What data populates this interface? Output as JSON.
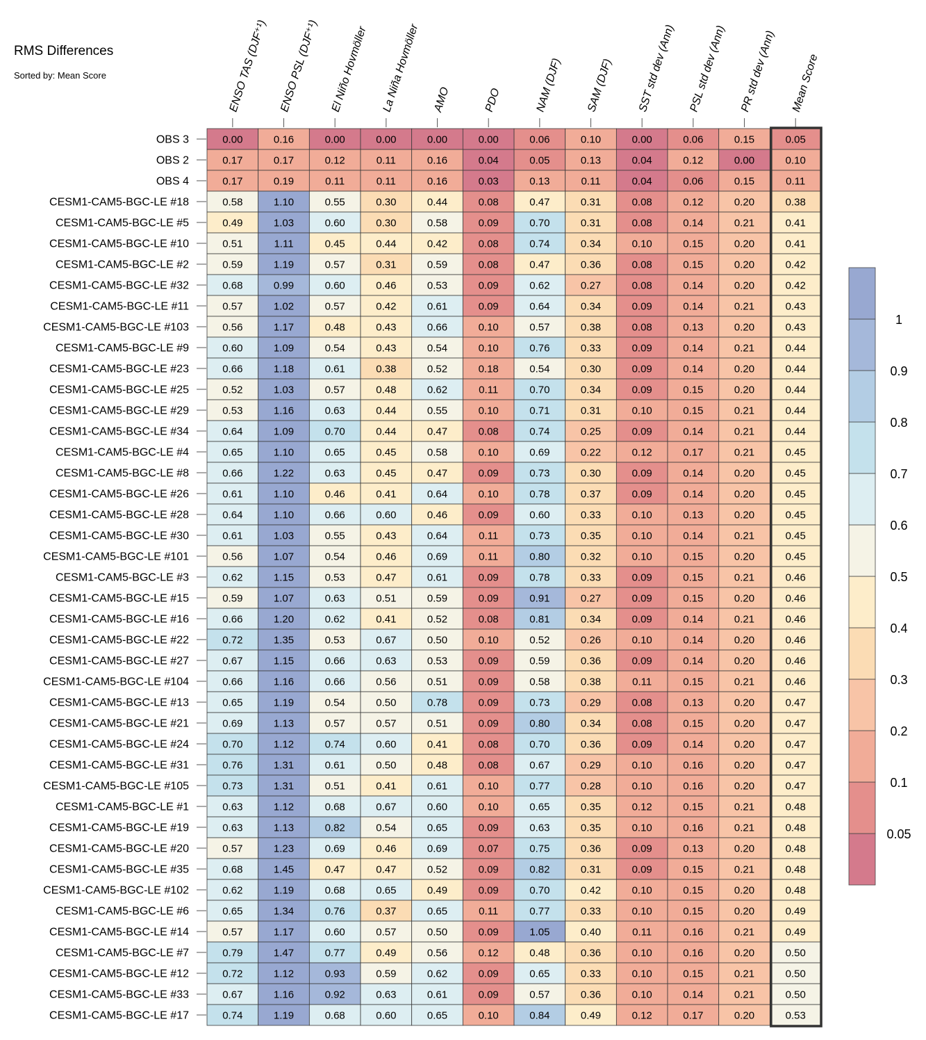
{
  "chart_data": {
    "type": "heatmap",
    "title": "RMS Differences",
    "subtitle": "Sorted by: Mean Score",
    "columns": [
      "ENSO TAS (DJF⁺¹)",
      "ENSO PSL (DJF⁺¹)",
      "El Niño Hovmöller",
      "La Niña Hovmöller",
      "AMO",
      "PDO",
      "NAM (DJF)",
      "SAM (DJF)",
      "SST std dev (Ann)",
      "PSL std dev (Ann)",
      "PR std dev (Ann)",
      "Mean Score"
    ],
    "highlighted_column": "Mean Score",
    "rows": [
      "OBS 3",
      "OBS 2",
      "OBS 4",
      "CESM1-CAM5-BGC-LE #18",
      "CESM1-CAM5-BGC-LE #5",
      "CESM1-CAM5-BGC-LE #10",
      "CESM1-CAM5-BGC-LE #2",
      "CESM1-CAM5-BGC-LE #32",
      "CESM1-CAM5-BGC-LE #11",
      "CESM1-CAM5-BGC-LE #103",
      "CESM1-CAM5-BGC-LE #9",
      "CESM1-CAM5-BGC-LE #23",
      "CESM1-CAM5-BGC-LE #25",
      "CESM1-CAM5-BGC-LE #29",
      "CESM1-CAM5-BGC-LE #34",
      "CESM1-CAM5-BGC-LE #4",
      "CESM1-CAM5-BGC-LE #8",
      "CESM1-CAM5-BGC-LE #26",
      "CESM1-CAM5-BGC-LE #28",
      "CESM1-CAM5-BGC-LE #30",
      "CESM1-CAM5-BGC-LE #101",
      "CESM1-CAM5-BGC-LE #3",
      "CESM1-CAM5-BGC-LE #15",
      "CESM1-CAM5-BGC-LE #16",
      "CESM1-CAM5-BGC-LE #22",
      "CESM1-CAM5-BGC-LE #27",
      "CESM1-CAM5-BGC-LE #104",
      "CESM1-CAM5-BGC-LE #13",
      "CESM1-CAM5-BGC-LE #21",
      "CESM1-CAM5-BGC-LE #24",
      "CESM1-CAM5-BGC-LE #31",
      "CESM1-CAM5-BGC-LE #105",
      "CESM1-CAM5-BGC-LE #1",
      "CESM1-CAM5-BGC-LE #19",
      "CESM1-CAM5-BGC-LE #20",
      "CESM1-CAM5-BGC-LE #35",
      "CESM1-CAM5-BGC-LE #102",
      "CESM1-CAM5-BGC-LE #6",
      "CESM1-CAM5-BGC-LE #14",
      "CESM1-CAM5-BGC-LE #7",
      "CESM1-CAM5-BGC-LE #12",
      "CESM1-CAM5-BGC-LE #33",
      "CESM1-CAM5-BGC-LE #17"
    ],
    "values": [
      [
        "0.00",
        "0.16",
        "0.00",
        "0.00",
        "0.00",
        "0.00",
        "0.06",
        "0.10",
        "0.00",
        "0.06",
        "0.15",
        "0.05"
      ],
      [
        "0.17",
        "0.17",
        "0.12",
        "0.11",
        "0.16",
        "0.04",
        "0.05",
        "0.13",
        "0.04",
        "0.12",
        "0.00",
        "0.10"
      ],
      [
        "0.17",
        "0.19",
        "0.11",
        "0.11",
        "0.16",
        "0.03",
        "0.13",
        "0.11",
        "0.04",
        "0.06",
        "0.15",
        "0.11"
      ],
      [
        "0.58",
        "1.10",
        "0.55",
        "0.30",
        "0.44",
        "0.08",
        "0.47",
        "0.31",
        "0.08",
        "0.12",
        "0.20",
        "0.38"
      ],
      [
        "0.49",
        "1.03",
        "0.60",
        "0.30",
        "0.58",
        "0.09",
        "0.70",
        "0.31",
        "0.08",
        "0.14",
        "0.21",
        "0.41"
      ],
      [
        "0.51",
        "1.11",
        "0.45",
        "0.44",
        "0.42",
        "0.08",
        "0.74",
        "0.34",
        "0.10",
        "0.15",
        "0.20",
        "0.41"
      ],
      [
        "0.59",
        "1.19",
        "0.57",
        "0.31",
        "0.59",
        "0.08",
        "0.47",
        "0.36",
        "0.08",
        "0.15",
        "0.20",
        "0.42"
      ],
      [
        "0.68",
        "0.99",
        "0.60",
        "0.46",
        "0.53",
        "0.09",
        "0.62",
        "0.27",
        "0.08",
        "0.14",
        "0.20",
        "0.42"
      ],
      [
        "0.57",
        "1.02",
        "0.57",
        "0.42",
        "0.61",
        "0.09",
        "0.64",
        "0.34",
        "0.09",
        "0.14",
        "0.21",
        "0.43"
      ],
      [
        "0.56",
        "1.17",
        "0.48",
        "0.43",
        "0.66",
        "0.10",
        "0.57",
        "0.38",
        "0.08",
        "0.13",
        "0.20",
        "0.43"
      ],
      [
        "0.60",
        "1.09",
        "0.54",
        "0.43",
        "0.54",
        "0.10",
        "0.76",
        "0.33",
        "0.09",
        "0.14",
        "0.21",
        "0.44"
      ],
      [
        "0.66",
        "1.18",
        "0.61",
        "0.38",
        "0.52",
        "0.18",
        "0.54",
        "0.30",
        "0.09",
        "0.14",
        "0.20",
        "0.44"
      ],
      [
        "0.52",
        "1.03",
        "0.57",
        "0.48",
        "0.62",
        "0.11",
        "0.70",
        "0.34",
        "0.09",
        "0.15",
        "0.20",
        "0.44"
      ],
      [
        "0.53",
        "1.16",
        "0.63",
        "0.44",
        "0.55",
        "0.10",
        "0.71",
        "0.31",
        "0.10",
        "0.15",
        "0.21",
        "0.44"
      ],
      [
        "0.64",
        "1.09",
        "0.70",
        "0.44",
        "0.47",
        "0.08",
        "0.74",
        "0.25",
        "0.09",
        "0.14",
        "0.21",
        "0.44"
      ],
      [
        "0.65",
        "1.10",
        "0.65",
        "0.45",
        "0.58",
        "0.10",
        "0.69",
        "0.22",
        "0.12",
        "0.17",
        "0.21",
        "0.45"
      ],
      [
        "0.66",
        "1.22",
        "0.63",
        "0.45",
        "0.47",
        "0.09",
        "0.73",
        "0.30",
        "0.09",
        "0.14",
        "0.20",
        "0.45"
      ],
      [
        "0.61",
        "1.10",
        "0.46",
        "0.41",
        "0.64",
        "0.10",
        "0.78",
        "0.37",
        "0.09",
        "0.14",
        "0.20",
        "0.45"
      ],
      [
        "0.64",
        "1.10",
        "0.66",
        "0.60",
        "0.46",
        "0.09",
        "0.60",
        "0.33",
        "0.10",
        "0.13",
        "0.20",
        "0.45"
      ],
      [
        "0.61",
        "1.03",
        "0.55",
        "0.43",
        "0.64",
        "0.11",
        "0.73",
        "0.35",
        "0.10",
        "0.14",
        "0.21",
        "0.45"
      ],
      [
        "0.56",
        "1.07",
        "0.54",
        "0.46",
        "0.69",
        "0.11",
        "0.80",
        "0.32",
        "0.10",
        "0.15",
        "0.20",
        "0.45"
      ],
      [
        "0.62",
        "1.15",
        "0.53",
        "0.47",
        "0.61",
        "0.09",
        "0.78",
        "0.33",
        "0.09",
        "0.15",
        "0.21",
        "0.46"
      ],
      [
        "0.59",
        "1.07",
        "0.63",
        "0.51",
        "0.59",
        "0.09",
        "0.91",
        "0.27",
        "0.09",
        "0.15",
        "0.20",
        "0.46"
      ],
      [
        "0.66",
        "1.20",
        "0.62",
        "0.41",
        "0.52",
        "0.08",
        "0.81",
        "0.34",
        "0.09",
        "0.14",
        "0.21",
        "0.46"
      ],
      [
        "0.72",
        "1.35",
        "0.53",
        "0.67",
        "0.50",
        "0.10",
        "0.52",
        "0.26",
        "0.10",
        "0.14",
        "0.20",
        "0.46"
      ],
      [
        "0.67",
        "1.15",
        "0.66",
        "0.63",
        "0.53",
        "0.09",
        "0.59",
        "0.36",
        "0.09",
        "0.14",
        "0.20",
        "0.46"
      ],
      [
        "0.66",
        "1.16",
        "0.66",
        "0.56",
        "0.51",
        "0.09",
        "0.58",
        "0.38",
        "0.11",
        "0.15",
        "0.21",
        "0.46"
      ],
      [
        "0.65",
        "1.19",
        "0.54",
        "0.50",
        "0.78",
        "0.09",
        "0.73",
        "0.29",
        "0.08",
        "0.13",
        "0.20",
        "0.47"
      ],
      [
        "0.69",
        "1.13",
        "0.57",
        "0.57",
        "0.51",
        "0.09",
        "0.80",
        "0.34",
        "0.08",
        "0.15",
        "0.20",
        "0.47"
      ],
      [
        "0.70",
        "1.12",
        "0.74",
        "0.60",
        "0.41",
        "0.08",
        "0.70",
        "0.36",
        "0.09",
        "0.14",
        "0.20",
        "0.47"
      ],
      [
        "0.76",
        "1.31",
        "0.61",
        "0.50",
        "0.48",
        "0.08",
        "0.67",
        "0.29",
        "0.10",
        "0.16",
        "0.20",
        "0.47"
      ],
      [
        "0.73",
        "1.31",
        "0.51",
        "0.41",
        "0.61",
        "0.10",
        "0.77",
        "0.28",
        "0.10",
        "0.16",
        "0.20",
        "0.47"
      ],
      [
        "0.63",
        "1.12",
        "0.68",
        "0.67",
        "0.60",
        "0.10",
        "0.65",
        "0.35",
        "0.12",
        "0.15",
        "0.21",
        "0.48"
      ],
      [
        "0.63",
        "1.13",
        "0.82",
        "0.54",
        "0.65",
        "0.09",
        "0.63",
        "0.35",
        "0.10",
        "0.16",
        "0.21",
        "0.48"
      ],
      [
        "0.57",
        "1.23",
        "0.69",
        "0.46",
        "0.69",
        "0.07",
        "0.75",
        "0.36",
        "0.09",
        "0.13",
        "0.20",
        "0.48"
      ],
      [
        "0.68",
        "1.45",
        "0.47",
        "0.47",
        "0.52",
        "0.09",
        "0.82",
        "0.31",
        "0.09",
        "0.15",
        "0.21",
        "0.48"
      ],
      [
        "0.62",
        "1.19",
        "0.68",
        "0.65",
        "0.49",
        "0.09",
        "0.70",
        "0.42",
        "0.10",
        "0.15",
        "0.20",
        "0.48"
      ],
      [
        "0.65",
        "1.34",
        "0.76",
        "0.37",
        "0.65",
        "0.11",
        "0.77",
        "0.33",
        "0.10",
        "0.15",
        "0.20",
        "0.49"
      ],
      [
        "0.57",
        "1.17",
        "0.60",
        "0.57",
        "0.50",
        "0.09",
        "1.05",
        "0.40",
        "0.11",
        "0.16",
        "0.21",
        "0.49"
      ],
      [
        "0.79",
        "1.47",
        "0.77",
        "0.49",
        "0.56",
        "0.12",
        "0.48",
        "0.36",
        "0.10",
        "0.16",
        "0.20",
        "0.50"
      ],
      [
        "0.72",
        "1.12",
        "0.93",
        "0.59",
        "0.62",
        "0.09",
        "0.65",
        "0.33",
        "0.10",
        "0.15",
        "0.21",
        "0.50"
      ],
      [
        "0.67",
        "1.16",
        "0.92",
        "0.63",
        "0.61",
        "0.09",
        "0.57",
        "0.36",
        "0.10",
        "0.14",
        "0.21",
        "0.50"
      ],
      [
        "0.74",
        "1.19",
        "0.68",
        "0.60",
        "0.65",
        "0.10",
        "0.84",
        "0.49",
        "0.12",
        "0.17",
        "0.20",
        "0.53"
      ]
    ],
    "colorbar": {
      "levels": [
        0.05,
        0.1,
        0.2,
        0.3,
        0.4,
        0.5,
        0.6,
        0.7,
        0.8,
        0.9,
        1
      ],
      "tick_labels": [
        "0.05",
        "0.1",
        "0.2",
        "0.3",
        "0.4",
        "0.5",
        "0.6",
        "0.7",
        "0.8",
        "0.9",
        "1"
      ],
      "colors": [
        "#d47a8c",
        "#e48f8c",
        "#f1ac98",
        "#f8c4a7",
        "#fbdcb4",
        "#fdedca",
        "#f5f3e6",
        "#ddeef2",
        "#c4e1ec",
        "#b3cde4",
        "#a5b8da",
        "#98a8d1"
      ]
    }
  }
}
